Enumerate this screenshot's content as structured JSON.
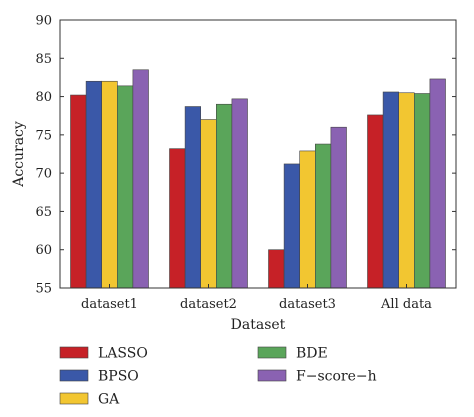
{
  "chart_data": {
    "type": "bar",
    "categories": [
      "dataset1",
      "dataset2",
      "dataset3",
      "All data"
    ],
    "series": [
      {
        "name": "LASSO",
        "color": "#c62127",
        "values": [
          80.2,
          73.2,
          60.0,
          77.6
        ]
      },
      {
        "name": "BPSO",
        "color": "#3a58a8",
        "values": [
          82.0,
          78.7,
          71.2,
          80.6
        ]
      },
      {
        "name": "GA",
        "color": "#f2c631",
        "values": [
          82.0,
          77.0,
          72.9,
          80.5
        ]
      },
      {
        "name": "BDE",
        "color": "#5aa55a",
        "values": [
          81.4,
          79.0,
          73.8,
          80.4
        ]
      },
      {
        "name": "F−score−h",
        "color": "#8a62b2",
        "values": [
          83.5,
          79.7,
          76.0,
          82.3
        ]
      }
    ],
    "xlabel": "Dataset",
    "ylabel": "Accuracy",
    "ylim": [
      55,
      90
    ],
    "yticks": [
      55,
      60,
      65,
      70,
      75,
      80,
      85,
      90
    ],
    "grid": false,
    "legend_position": "bottom"
  }
}
